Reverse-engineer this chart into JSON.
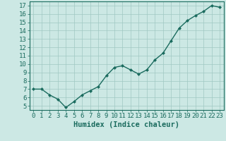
{
  "x": [
    0,
    1,
    2,
    3,
    4,
    5,
    6,
    7,
    8,
    9,
    10,
    11,
    12,
    13,
    14,
    15,
    16,
    17,
    18,
    19,
    20,
    21,
    22,
    23
  ],
  "y": [
    7.0,
    7.0,
    6.3,
    5.8,
    4.8,
    5.5,
    6.3,
    6.8,
    7.3,
    8.6,
    9.6,
    9.8,
    9.3,
    8.8,
    9.3,
    10.5,
    11.3,
    12.8,
    14.3,
    15.2,
    15.8,
    16.3,
    17.0,
    16.8
  ],
  "line_color": "#1a6b5e",
  "marker": "D",
  "marker_size": 2.0,
  "bg_color": "#cce8e4",
  "grid_color": "#a0c8c2",
  "axis_color": "#1a6b5e",
  "xlabel": "Humidex (Indice chaleur)",
  "xlabel_fontsize": 7.5,
  "ylabel_ticks": [
    5,
    6,
    7,
    8,
    9,
    10,
    11,
    12,
    13,
    14,
    15,
    16,
    17
  ],
  "xlim": [
    -0.5,
    23.5
  ],
  "ylim": [
    4.5,
    17.5
  ],
  "xticks": [
    0,
    1,
    2,
    3,
    4,
    5,
    6,
    7,
    8,
    9,
    10,
    11,
    12,
    13,
    14,
    15,
    16,
    17,
    18,
    19,
    20,
    21,
    22,
    23
  ],
  "tick_fontsize": 6.5,
  "line_width": 1.0
}
